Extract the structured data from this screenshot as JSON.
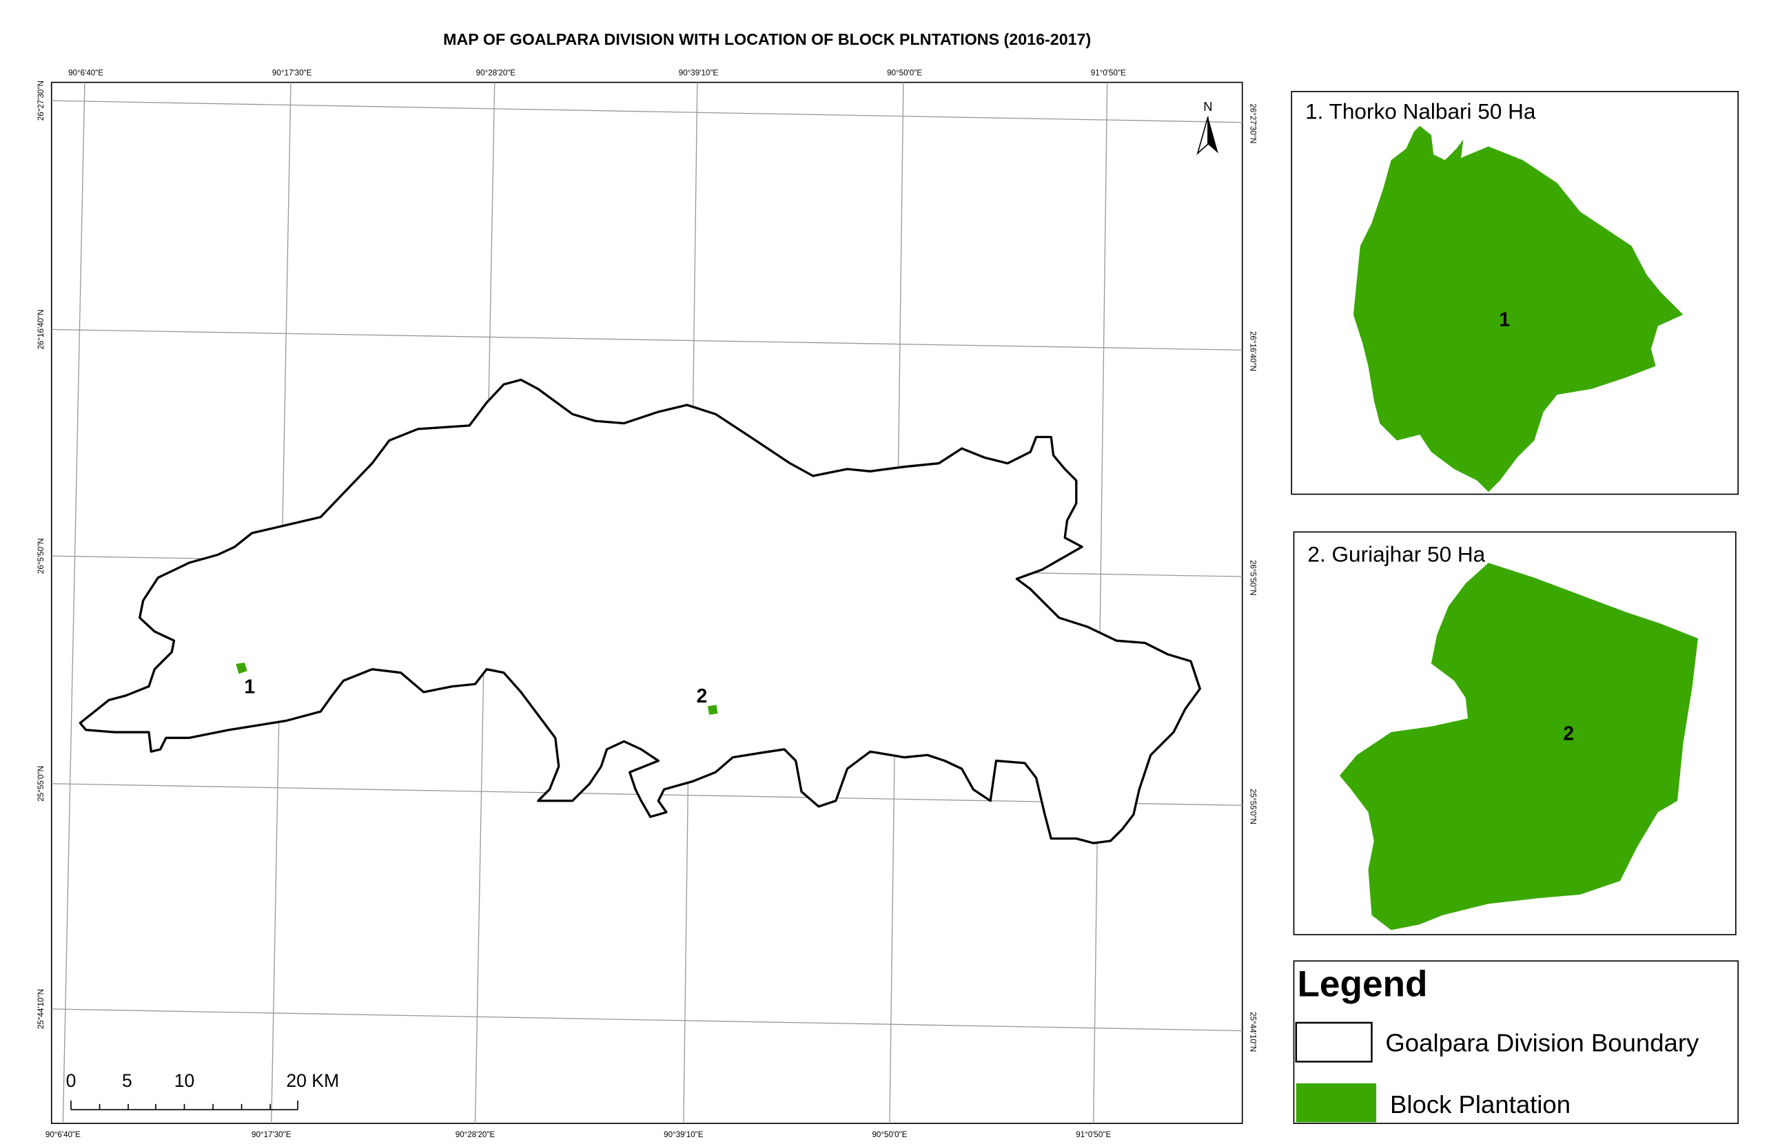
{
  "title": "MAP OF GOALPARA DIVISION WITH LOCATION OF BLOCK PLNTATIONS (2016-2017)",
  "map": {
    "lon_labels_top": [
      "90°6'40\"E",
      "90°17'30\"E",
      "90°28'20\"E",
      "90°39'10\"E",
      "90°50'0\"E",
      "91°0'50\"E"
    ],
    "lon_labels_bottom": [
      "90°6'40\"E",
      "90°17'30\"E",
      "90°28'20\"E",
      "90°39'10\"E",
      "90°50'0\"E",
      "91°0'50\"E"
    ],
    "lat_labels_left": [
      "26°27'30\"N",
      "26°16'40\"N",
      "26°5'50\"N",
      "25°55'0\"N",
      "25°44'10\"N"
    ],
    "lat_labels_right": [
      "26°27'30\"N",
      "26°16'40\"N",
      "26°5'50\"N",
      "25°55'0\"N",
      "25°44'10\"N"
    ],
    "north": "N",
    "markers": [
      "1",
      "2"
    ],
    "scale_bar": [
      "0",
      "5",
      "10",
      "20 KM"
    ]
  },
  "insets": [
    {
      "title": "1. Thorko Nalbari 50 Ha",
      "label": "1"
    },
    {
      "title": "2. Guriajhar 50 Ha",
      "label": "2"
    }
  ],
  "legend": {
    "title": "Legend",
    "items": [
      "Goalpara Division Boundary",
      "Block Plantation"
    ]
  }
}
